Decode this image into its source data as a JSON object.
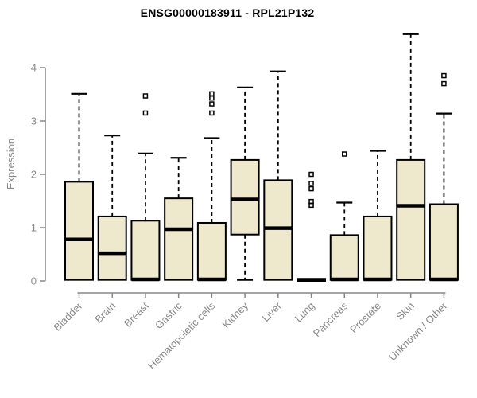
{
  "title": "ENSG00000183911 - RPL21P132",
  "chart_data": {
    "type": "boxplot",
    "title": "ENSG00000183911 - RPL21P132",
    "xlabel": "",
    "ylabel": "Expression",
    "ylim": [
      0,
      4.7
    ],
    "yticks": [
      0,
      1,
      2,
      3,
      4
    ],
    "grid": false,
    "legend": false,
    "categories": [
      "Bladder",
      "Brain",
      "Breast",
      "Gastric",
      "Hematopoietic cells",
      "Kidney",
      "Liver",
      "Lung",
      "Pancreas",
      "Prostate",
      "Skin",
      "Unknown / Other"
    ],
    "series": [
      {
        "name": "Bladder",
        "whislo": 0.02,
        "q1": 0.02,
        "med": 0.78,
        "q3": 1.86,
        "whishi": 3.51,
        "fliers": []
      },
      {
        "name": "Brain",
        "whislo": 0.02,
        "q1": 0.02,
        "med": 0.52,
        "q3": 1.21,
        "whishi": 2.73,
        "fliers": []
      },
      {
        "name": "Breast",
        "whislo": 0.02,
        "q1": 0.02,
        "med": 0.03,
        "q3": 1.13,
        "whishi": 2.39,
        "fliers": [
          3.15,
          3.47
        ]
      },
      {
        "name": "Gastric",
        "whislo": 0.02,
        "q1": 0.02,
        "med": 0.97,
        "q3": 1.55,
        "whishi": 2.31,
        "fliers": []
      },
      {
        "name": "Hematopoietic cells",
        "whislo": 0.02,
        "q1": 0.02,
        "med": 0.03,
        "q3": 1.09,
        "whishi": 2.68,
        "fliers": [
          3.15,
          3.32,
          3.43,
          3.51
        ]
      },
      {
        "name": "Kidney",
        "whislo": 0.02,
        "q1": 0.87,
        "med": 1.53,
        "q3": 2.27,
        "whishi": 3.63,
        "fliers": []
      },
      {
        "name": "Liver",
        "whislo": 0.02,
        "q1": 0.02,
        "med": 0.99,
        "q3": 1.89,
        "whishi": 3.93,
        "fliers": []
      },
      {
        "name": "Lung",
        "whislo": 0.0,
        "q1": 0.0,
        "med": 0.02,
        "q3": 0.04,
        "whishi": 0.04,
        "fliers": [
          1.42,
          1.49,
          1.73,
          1.83,
          2.0
        ]
      },
      {
        "name": "Pancreas",
        "whislo": 0.02,
        "q1": 0.02,
        "med": 0.03,
        "q3": 0.86,
        "whishi": 1.47,
        "fliers": [
          2.38
        ]
      },
      {
        "name": "Prostate",
        "whislo": 0.02,
        "q1": 0.02,
        "med": 0.03,
        "q3": 1.21,
        "whishi": 2.44,
        "fliers": []
      },
      {
        "name": "Skin",
        "whislo": 0.02,
        "q1": 0.02,
        "med": 1.41,
        "q3": 2.27,
        "whishi": 4.63,
        "fliers": []
      },
      {
        "name": "Unknown / Other",
        "whislo": 0.02,
        "q1": 0.02,
        "med": 0.03,
        "q3": 1.44,
        "whishi": 3.14,
        "fliers": [
          3.7,
          3.85
        ]
      }
    ],
    "style": {
      "box_fill": "#EEE8CD",
      "box_stroke": "#000000",
      "median_color": "#000000",
      "whisker_color": "#000000",
      "outlier_color": "#000000",
      "axis_color": "#888888",
      "tick_text_color": "#8a8a8a",
      "title_color": "#000000",
      "background": "#FFFFFF"
    }
  }
}
